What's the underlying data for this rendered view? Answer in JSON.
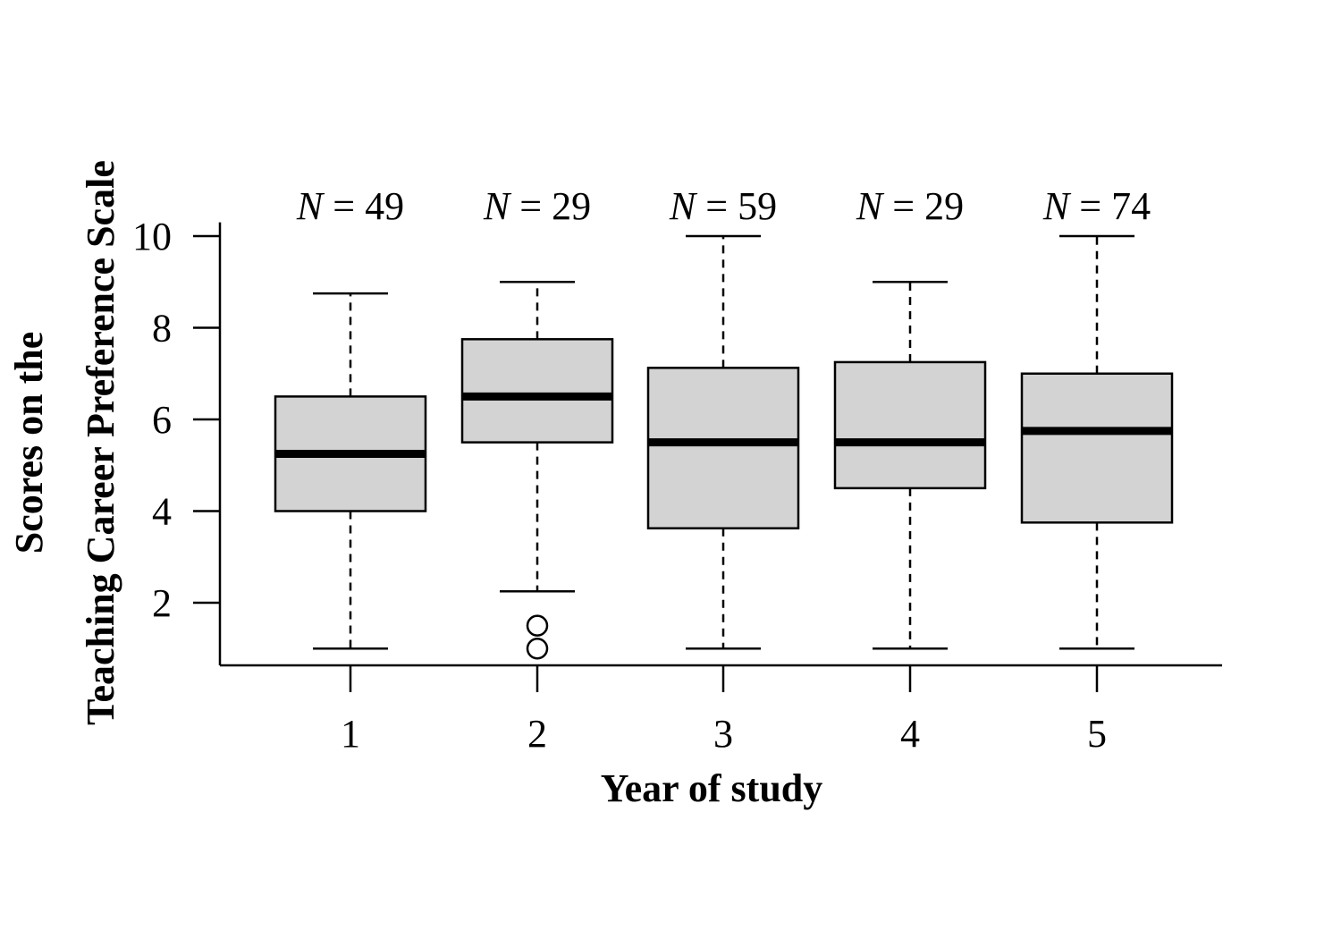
{
  "chart_data": {
    "type": "box",
    "xlabel": "Year of study",
    "ylabel_lines": [
      "Scores on the",
      "Teaching Career Preference Scale"
    ],
    "ylim": [
      0.6,
      10.3
    ],
    "yticks": [
      2,
      4,
      6,
      8,
      10
    ],
    "categories": [
      "1",
      "2",
      "3",
      "4",
      "5"
    ],
    "n_labels": [
      {
        "prefix": "N",
        "text": " = 49"
      },
      {
        "prefix": "N",
        "text": " = 29"
      },
      {
        "prefix": "N",
        "text": " = 59"
      },
      {
        "prefix": "N",
        "text": " = 29"
      },
      {
        "prefix": "N",
        "text": " = 74"
      }
    ],
    "boxes": [
      {
        "min": 1.0,
        "q1": 4.0,
        "median": 5.25,
        "q3": 6.5,
        "max": 8.75,
        "outliers": []
      },
      {
        "min": 2.25,
        "q1": 5.5,
        "median": 6.5,
        "q3": 7.75,
        "max": 9.0,
        "outliers": [
          1.0,
          1.5
        ]
      },
      {
        "min": 1.0,
        "q1": 3.625,
        "median": 5.5,
        "q3": 7.125,
        "max": 10.0,
        "outliers": []
      },
      {
        "min": 1.0,
        "q1": 4.5,
        "median": 5.5,
        "q3": 7.25,
        "max": 9.0,
        "outliers": []
      },
      {
        "min": 1.0,
        "q1": 3.75,
        "median": 5.75,
        "q3": 7.0,
        "max": 10.0,
        "outliers": []
      }
    ],
    "colors": {
      "box_fill": "#d3d3d3",
      "line": "#000000"
    }
  }
}
